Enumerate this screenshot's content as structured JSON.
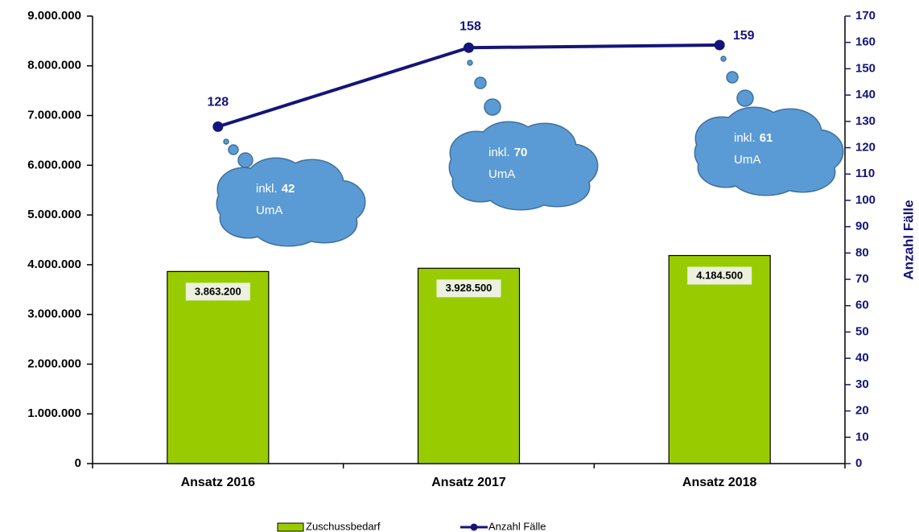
{
  "chart_data": {
    "type": "bar",
    "categories": [
      "Ansatz 2016",
      "Ansatz 2017",
      "Ansatz 2018"
    ],
    "series": [
      {
        "name": "Zuschussbedarf",
        "type": "bar",
        "color": "#99cc00",
        "values": [
          3863200,
          3928500,
          4184500
        ],
        "value_labels": [
          "3.863.200",
          "3.928.500",
          "4.184.500"
        ]
      },
      {
        "name": "Anzahl Fälle",
        "type": "line",
        "axis": "y2",
        "color": "#14147a",
        "values": [
          128,
          158,
          159
        ]
      }
    ],
    "ylim": [
      0,
      9000000
    ],
    "yticks": [
      {
        "value": 0,
        "label": "0"
      },
      {
        "value": 1000000,
        "label": "1.000.000"
      },
      {
        "value": 2000000,
        "label": "2.000.000"
      },
      {
        "value": 3000000,
        "label": "3.000.000"
      },
      {
        "value": 4000000,
        "label": "4.000.000"
      },
      {
        "value": 5000000,
        "label": "5.000.000"
      },
      {
        "value": 6000000,
        "label": "6.000.000"
      },
      {
        "value": 7000000,
        "label": "7.000.000"
      },
      {
        "value": 8000000,
        "label": "8.000.000"
      },
      {
        "value": 9000000,
        "label": "9.000.000"
      }
    ],
    "y2lim": [
      0,
      170
    ],
    "y2ticks": [
      0,
      10,
      20,
      30,
      40,
      50,
      60,
      70,
      80,
      90,
      100,
      110,
      120,
      130,
      140,
      150,
      160,
      170
    ],
    "y2label": "Anzahl Fälle",
    "annotations": [
      [
        "inkl.",
        "42",
        "UmA"
      ],
      [
        "inkl.",
        "70",
        "UmA"
      ],
      [
        "inkl.",
        "61",
        "UmA"
      ]
    ],
    "grid": false,
    "legend": "bottom"
  }
}
